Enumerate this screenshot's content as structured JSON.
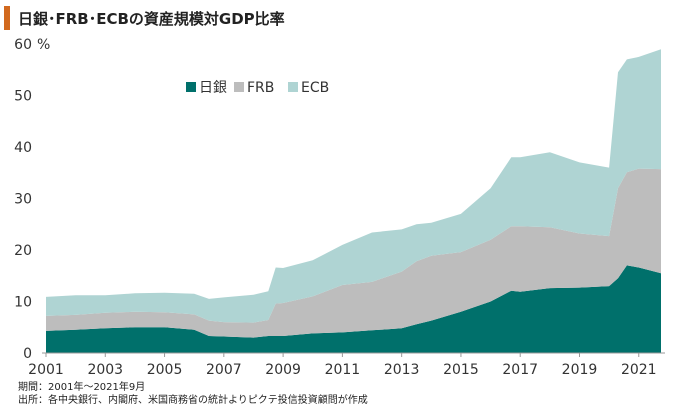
{
  "title": "日銀･FRB･ECBの資産規模対GDP比率",
  "unit_label": "%",
  "notes": {
    "period": "期間：2001年～2021年9月",
    "source": "出所：各中央銀行、内閣府、米国商務省の統計よりピクテ投信投資顧問が作成"
  },
  "colors": {
    "boj": "#00706b",
    "frb": "#bdbdbd",
    "ecb": "#afd4d3"
  },
  "chart_data": {
    "type": "area",
    "stacked": true,
    "title": "日銀･FRB･ECBの資産規模対GDP比率",
    "xlabel": "",
    "ylabel": "%",
    "ylim": [
      0,
      60
    ],
    "xlim": [
      2001.0,
      2021.75
    ],
    "yticks": [
      0,
      10,
      20,
      30,
      40,
      50,
      60
    ],
    "ytick_labels": [
      "0",
      "10",
      "20",
      "30",
      "40",
      "50",
      "60"
    ],
    "xticks": [
      2001,
      2003,
      2005,
      2007,
      2009,
      2011,
      2013,
      2015,
      2017,
      2019,
      2021
    ],
    "xtick_labels": [
      "2001",
      "2003",
      "2005",
      "2007",
      "2009",
      "2011",
      "2013",
      "2015",
      "2017",
      "2019",
      "2021"
    ],
    "grid": false,
    "legend_position": "top-left",
    "series": [
      {
        "name": "日銀",
        "key": "boj",
        "x": [
          2001.0,
          2002.0,
          2003.0,
          2004.0,
          2005.0,
          2006.0,
          2006.5,
          2007.0,
          2008.0,
          2008.5,
          2009.0,
          2010.0,
          2011.0,
          2012.0,
          2013.0,
          2013.5,
          2014.0,
          2015.0,
          2016.0,
          2016.7,
          2017.0,
          2018.0,
          2019.0,
          2020.0,
          2020.3,
          2020.6,
          2021.0,
          2021.75
        ],
        "values": [
          4.3,
          4.5,
          4.8,
          5.0,
          5.0,
          4.5,
          3.3,
          3.2,
          3.0,
          3.3,
          3.3,
          3.8,
          4.0,
          4.4,
          4.8,
          5.6,
          6.3,
          8.0,
          10.0,
          12.1,
          11.9,
          12.6,
          12.7,
          13.0,
          14.5,
          17.0,
          16.6,
          15.5
        ]
      },
      {
        "name": "FRB",
        "key": "frb",
        "x": [
          2001.0,
          2002.0,
          2003.0,
          2004.0,
          2005.0,
          2006.0,
          2006.5,
          2007.0,
          2008.0,
          2008.5,
          2008.75,
          2009.0,
          2010.0,
          2011.0,
          2012.0,
          2013.0,
          2013.5,
          2014.0,
          2015.0,
          2016.0,
          2016.7,
          2017.0,
          2018.0,
          2019.0,
          2020.0,
          2020.3,
          2020.6,
          2021.0,
          2021.75
        ],
        "values": [
          2.9,
          2.9,
          3.0,
          3.0,
          2.9,
          3.0,
          3.0,
          2.8,
          2.9,
          3.1,
          6.3,
          6.4,
          7.2,
          9.2,
          9.4,
          11.0,
          12.2,
          12.6,
          11.6,
          12.0,
          12.5,
          12.7,
          11.8,
          10.5,
          9.7,
          17.5,
          18.1,
          19.2,
          20.2
        ]
      },
      {
        "name": "ECB",
        "key": "ecb",
        "x": [
          2001.0,
          2002.0,
          2003.0,
          2004.0,
          2005.0,
          2006.0,
          2006.5,
          2007.0,
          2008.0,
          2008.5,
          2008.75,
          2009.0,
          2010.0,
          2011.0,
          2012.0,
          2013.0,
          2013.5,
          2014.0,
          2015.0,
          2016.0,
          2016.7,
          2017.0,
          2018.0,
          2019.0,
          2020.0,
          2020.3,
          2020.6,
          2021.0,
          2021.75
        ],
        "values": [
          3.7,
          3.8,
          3.4,
          3.6,
          3.8,
          4.0,
          4.2,
          4.8,
          5.4,
          5.6,
          7.0,
          6.8,
          7.0,
          7.8,
          9.6,
          8.2,
          7.2,
          6.4,
          7.4,
          10.0,
          13.4,
          13.4,
          14.6,
          13.8,
          13.3,
          22.5,
          21.9,
          21.7,
          23.3
        ]
      }
    ]
  }
}
